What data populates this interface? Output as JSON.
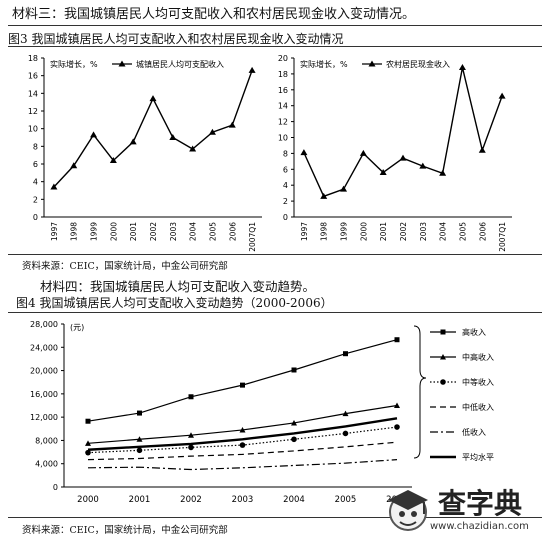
{
  "header": {
    "material3": "材料三：我国城镇居民人均可支配收入和农村居民现金收入变动情况。",
    "fig3_title": "图3 我国城镇居民人均可支配收入和农村居民现金收入变动情况",
    "source1": "资料来源：CEIC，国家统计局，中金公司研究部",
    "material4": "材料四：我国城镇居民人均可支配收入变动趋势。",
    "fig4_title": "图4 我国城镇居民人均可支配收入变动趋势（2000-2006）",
    "source2": "资料来源：CEIC，国家统计局，中金公司研究部"
  },
  "watermark": {
    "title": "查字典",
    "url": "www.chazidian.com"
  },
  "chart_data": [
    {
      "type": "line",
      "ylabel": "实际增长，%",
      "legend": "城镇居民人均可支配收入",
      "categories": [
        "1997",
        "1998",
        "1999",
        "2000",
        "2001",
        "2002",
        "2003",
        "2004",
        "2005",
        "2006",
        "2007Q1"
      ],
      "series": [
        {
          "name": "城镇居民人均可支配收入",
          "values": [
            3.4,
            5.8,
            9.3,
            6.4,
            8.5,
            13.4,
            9.0,
            7.7,
            9.6,
            10.4,
            16.6
          ]
        }
      ],
      "ylim": [
        0,
        18
      ],
      "yticks": [
        0,
        2,
        4,
        6,
        8,
        10,
        12,
        14,
        16,
        18
      ]
    },
    {
      "type": "line",
      "ylabel": "实际增长，%",
      "legend": "农村居民现金收入",
      "categories": [
        "1997",
        "1998",
        "1999",
        "2000",
        "2001",
        "2002",
        "2003",
        "2004",
        "2005",
        "2006",
        "2007Q1"
      ],
      "series": [
        {
          "name": "农村居民现金收入",
          "values": [
            8.1,
            2.6,
            3.5,
            8.0,
            5.6,
            7.4,
            6.4,
            5.5,
            18.8,
            8.4,
            15.2
          ]
        }
      ],
      "ylim": [
        0,
        20
      ],
      "yticks": [
        0,
        2,
        4,
        6,
        8,
        10,
        12,
        14,
        16,
        18,
        20
      ]
    },
    {
      "type": "line",
      "unit": "(元)",
      "categories": [
        "2000",
        "2001",
        "2002",
        "2003",
        "2004",
        "2005",
        "2006"
      ],
      "ylim": [
        0,
        28000
      ],
      "yticks": [
        0,
        4000,
        8000,
        12000,
        16000,
        20000,
        24000,
        28000
      ],
      "series": [
        {
          "name": "高收入",
          "style": "square",
          "values": [
            11300,
            12700,
            15500,
            17500,
            20100,
            22900,
            25300
          ]
        },
        {
          "name": "中高收入",
          "style": "triangle",
          "values": [
            7500,
            8200,
            8900,
            9800,
            11000,
            12600,
            14000
          ]
        },
        {
          "name": "中等收入",
          "style": "circle",
          "values": [
            5900,
            6300,
            6800,
            7200,
            8200,
            9200,
            10300
          ]
        },
        {
          "name": "中低收入",
          "style": "dashed",
          "values": [
            4700,
            4900,
            5300,
            5600,
            6200,
            6900,
            7700
          ]
        },
        {
          "name": "低收入",
          "style": "dashdot",
          "values": [
            3300,
            3400,
            3000,
            3300,
            3700,
            4100,
            4700
          ]
        },
        {
          "name": "平均水平",
          "style": "thick",
          "values": [
            6400,
            6900,
            7400,
            8200,
            9200,
            10400,
            11800
          ]
        }
      ]
    }
  ]
}
